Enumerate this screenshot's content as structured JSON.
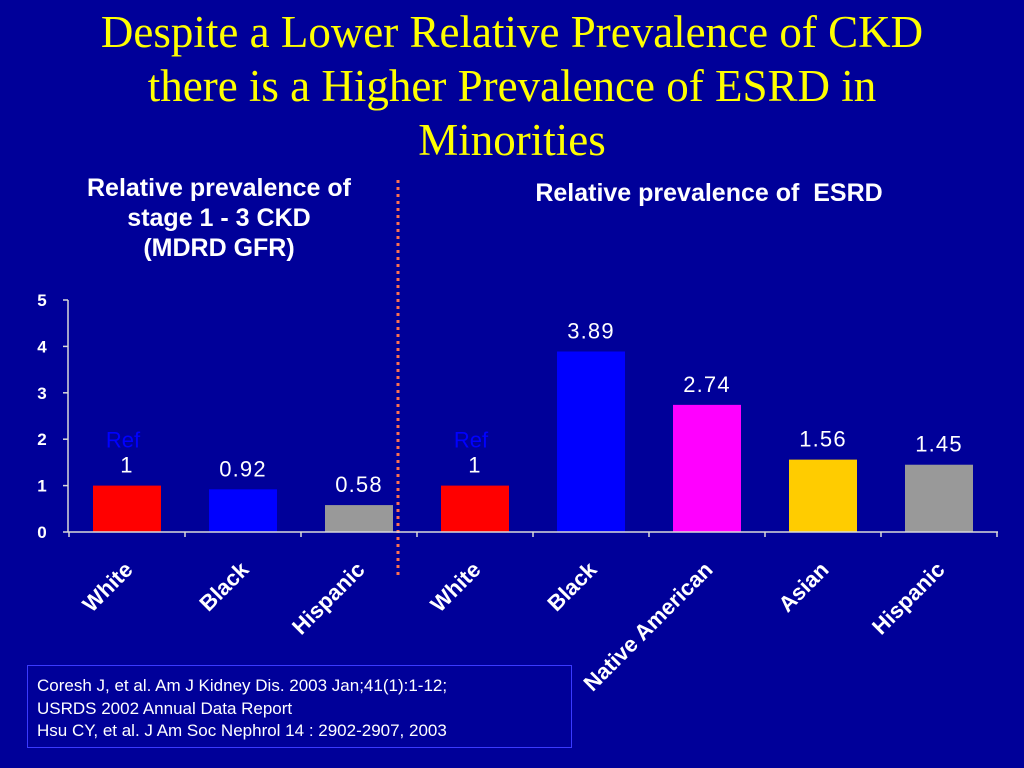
{
  "theme": {
    "background": "#000099",
    "title_color": "#FFFF00",
    "text_color": "#FFFFFF",
    "divider_color": "#FF7050",
    "annotation_color": "#0000FF",
    "box_border_color": "#3A3AFF",
    "axis_color": "#D9D9D9"
  },
  "slide_title": "Despite a Lower Relative Prevalence of CKD\nthere is a Higher Prevalence of ESRD in\nMinorities",
  "chart_data": [
    {
      "type": "bar",
      "title": "Relative prevalence of\nstage 1 - 3 CKD\n(MDRD GFR)",
      "categories": [
        "White",
        "Black",
        "Hispanic"
      ],
      "values": [
        1,
        0.92,
        0.58
      ],
      "colors": [
        "#FF0000",
        "#0000FF",
        "#999999"
      ],
      "annotations": [
        {
          "category": "White",
          "text": "Ref"
        }
      ],
      "ylim": [
        0,
        5
      ],
      "yticks": [
        0,
        1,
        2,
        3,
        4,
        5
      ]
    },
    {
      "type": "bar",
      "title": "Relative prevalence of  ESRD",
      "categories": [
        "White",
        "Black",
        "Native American",
        "Asian",
        "Hispanic"
      ],
      "values": [
        1,
        3.89,
        2.74,
        1.56,
        1.45
      ],
      "colors": [
        "#FF0000",
        "#0000FF",
        "#FF00FF",
        "#FFCC00",
        "#999999"
      ],
      "annotations": [
        {
          "category": "White",
          "text": "Ref"
        }
      ],
      "ylim": [
        0,
        5
      ]
    }
  ],
  "references": [
    "Coresh J, et al. Am J Kidney Dis. 2003 Jan;41(1):1-12;",
    "USRDS 2002 Annual Data Report",
    "Hsu CY, et al. J Am Soc Nephrol 14 : 2902-2907, 2003"
  ]
}
